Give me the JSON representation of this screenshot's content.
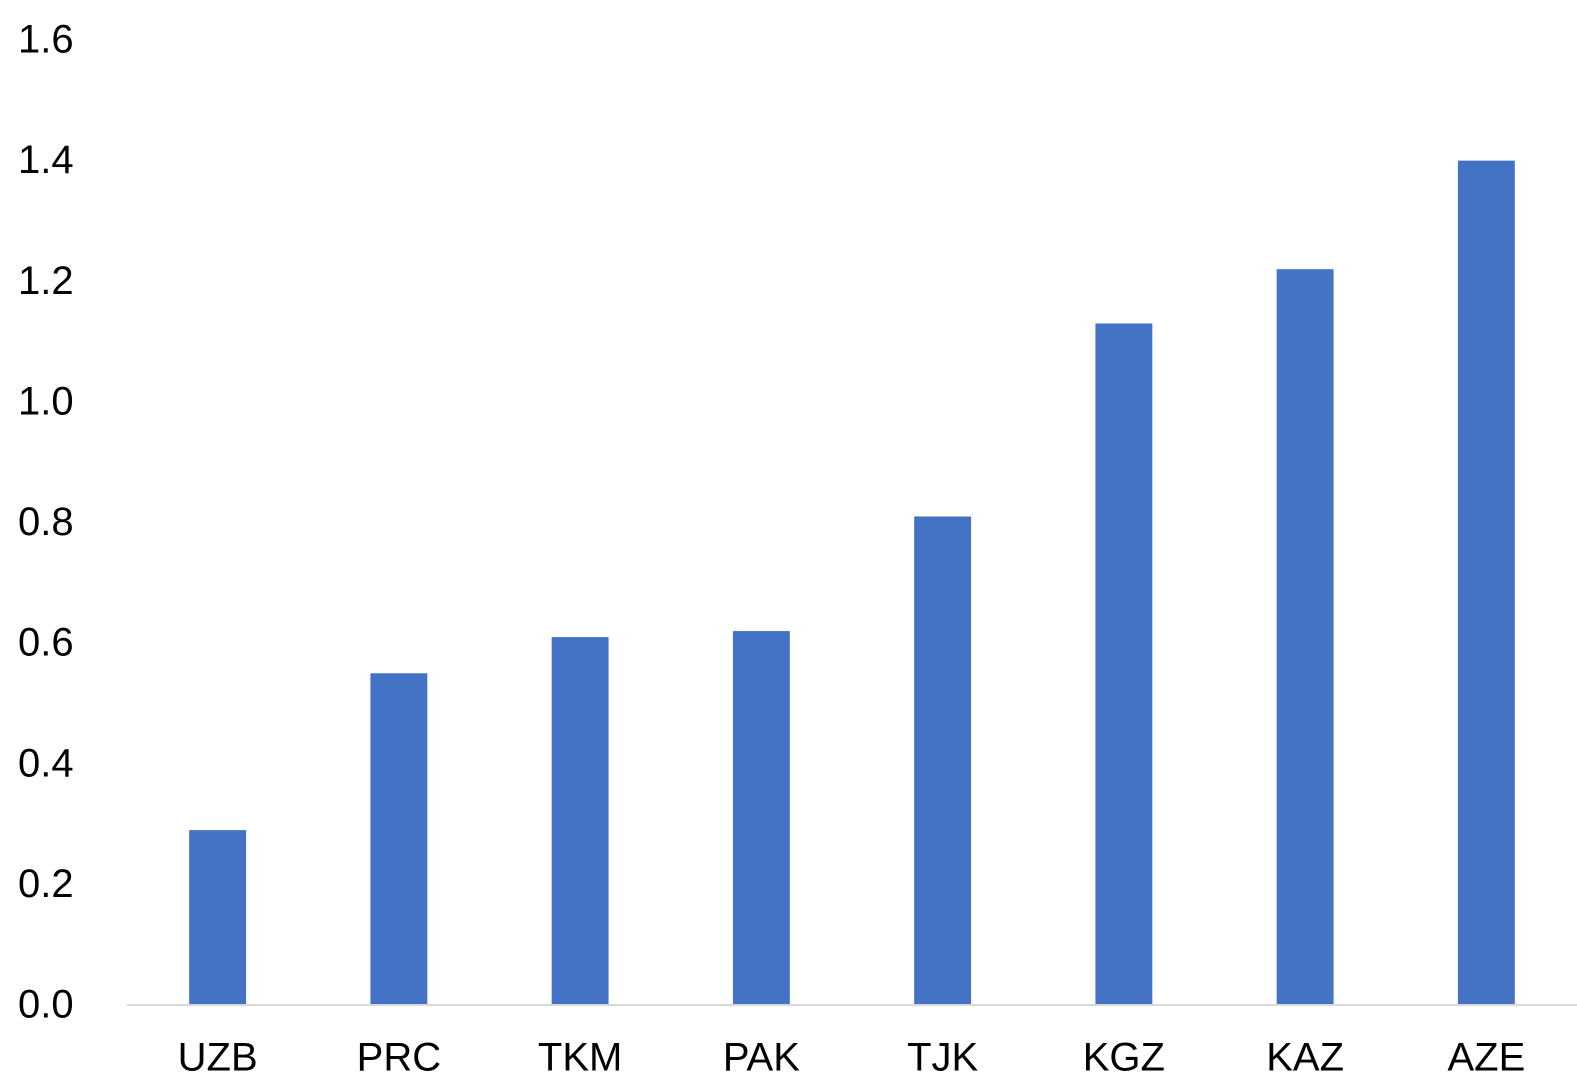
{
  "chart_data": {
    "type": "bar",
    "categories": [
      "UZB",
      "PRC",
      "TKM",
      "PAK",
      "TJK",
      "KGZ",
      "KAZ",
      "AZE"
    ],
    "values": [
      0.29,
      0.55,
      0.61,
      0.62,
      0.81,
      1.13,
      1.22,
      1.4
    ],
    "color": "#4472c4",
    "ylim": [
      0,
      1.6
    ],
    "yticks": [
      {
        "value": 0,
        "label": "0.0"
      },
      0.2,
      0.4,
      0.6,
      0.8,
      {
        "value": 1,
        "label": "1.0"
      },
      1.2,
      1.4,
      1.6
    ],
    "grid": false
  }
}
